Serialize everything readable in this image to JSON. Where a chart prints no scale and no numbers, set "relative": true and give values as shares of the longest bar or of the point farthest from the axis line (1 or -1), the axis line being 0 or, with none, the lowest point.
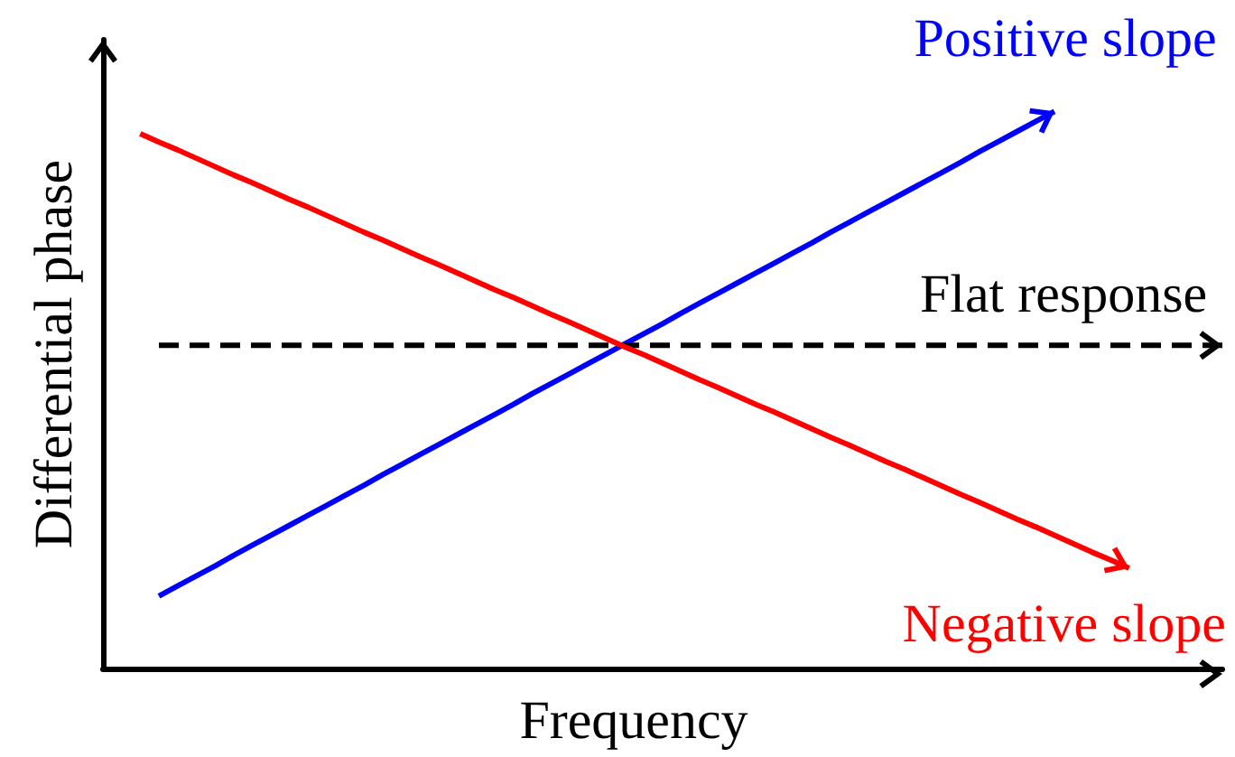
{
  "chart_data": {
    "type": "line",
    "relative": true,
    "xlabel": "Frequency",
    "ylabel": "Differential phase",
    "line_style": "solid",
    "marker": "none",
    "categories": [
      null,
      null,
      null,
      null,
      null,
      null,
      null,
      null,
      null,
      null,
      null,
      null,
      null,
      null,
      null,
      null,
      null,
      null,
      null,
      null,
      null,
      null,
      null,
      null,
      null,
      null,
      null,
      null,
      null,
      null,
      null,
      null,
      null,
      null,
      null,
      null,
      null,
      null,
      null,
      null,
      null,
      null,
      null,
      null,
      null,
      null,
      null,
      null,
      null,
      null,
      null,
      null,
      null,
      null,
      null,
      null,
      null,
      null,
      null,
      null,
      null
    ],
    "series": [
      {
        "name": "Positive slope",
        "color": "#0000ff",
        "values": [
          null,
          null,
          null,
          0.13,
          0.148,
          0.166,
          0.184,
          0.203,
          0.221,
          0.239,
          0.257,
          0.275,
          0.293,
          0.311,
          0.329,
          0.348,
          0.366,
          0.384,
          0.402,
          0.42,
          0.438,
          0.456,
          0.474,
          0.493,
          0.511,
          0.529,
          0.547,
          0.565,
          0.583,
          0.601,
          0.619,
          0.638,
          0.656,
          0.674,
          0.692,
          0.71,
          0.728,
          0.746,
          0.764,
          0.783,
          0.801,
          0.819,
          0.837,
          0.855,
          0.873,
          0.891,
          0.909,
          0.928,
          0.946,
          0.964,
          0.982,
          1,
          null,
          null,
          null,
          null,
          null,
          null,
          null,
          null,
          null
        ]
      },
      {
        "name": "Flat response",
        "color": "#000000",
        "line_style": "dashed",
        "values": [
          null,
          null,
          null,
          0.58,
          0.58,
          0.58,
          0.58,
          0.58,
          0.58,
          0.58,
          0.58,
          0.58,
          0.58,
          0.58,
          0.58,
          0.58,
          0.58,
          0.58,
          0.58,
          0.58,
          0.58,
          0.58,
          0.58,
          0.58,
          0.58,
          0.58,
          0.58,
          0.58,
          0.58,
          0.58,
          0.58,
          0.58,
          0.58,
          0.58,
          0.58,
          0.58,
          0.58,
          0.58,
          0.58,
          0.58,
          0.58,
          0.58,
          0.58,
          0.58,
          0.58,
          0.58,
          0.58,
          0.58,
          0.58,
          0.58,
          0.58,
          0.58,
          0.58,
          0.58,
          0.58,
          0.58,
          0.58,
          0.58,
          0.58,
          0.58,
          0.58
        ]
      },
      {
        "name": "Negative slope",
        "color": "#ff0000",
        "values": [
          null,
          null,
          0.96,
          0.945,
          0.931,
          0.916,
          0.901,
          0.886,
          0.872,
          0.857,
          0.842,
          0.828,
          0.813,
          0.798,
          0.783,
          0.769,
          0.754,
          0.739,
          0.725,
          0.71,
          0.695,
          0.68,
          0.666,
          0.651,
          0.636,
          0.622,
          0.607,
          0.592,
          0.577,
          0.563,
          0.548,
          0.533,
          0.518,
          0.504,
          0.489,
          0.474,
          0.46,
          0.445,
          0.43,
          0.415,
          0.401,
          0.386,
          0.371,
          0.357,
          0.342,
          0.327,
          0.312,
          0.298,
          0.283,
          0.268,
          0.254,
          0.239,
          0.224,
          0.209,
          0.195,
          0.18,
          null,
          null,
          null,
          null,
          null
        ]
      }
    ]
  }
}
